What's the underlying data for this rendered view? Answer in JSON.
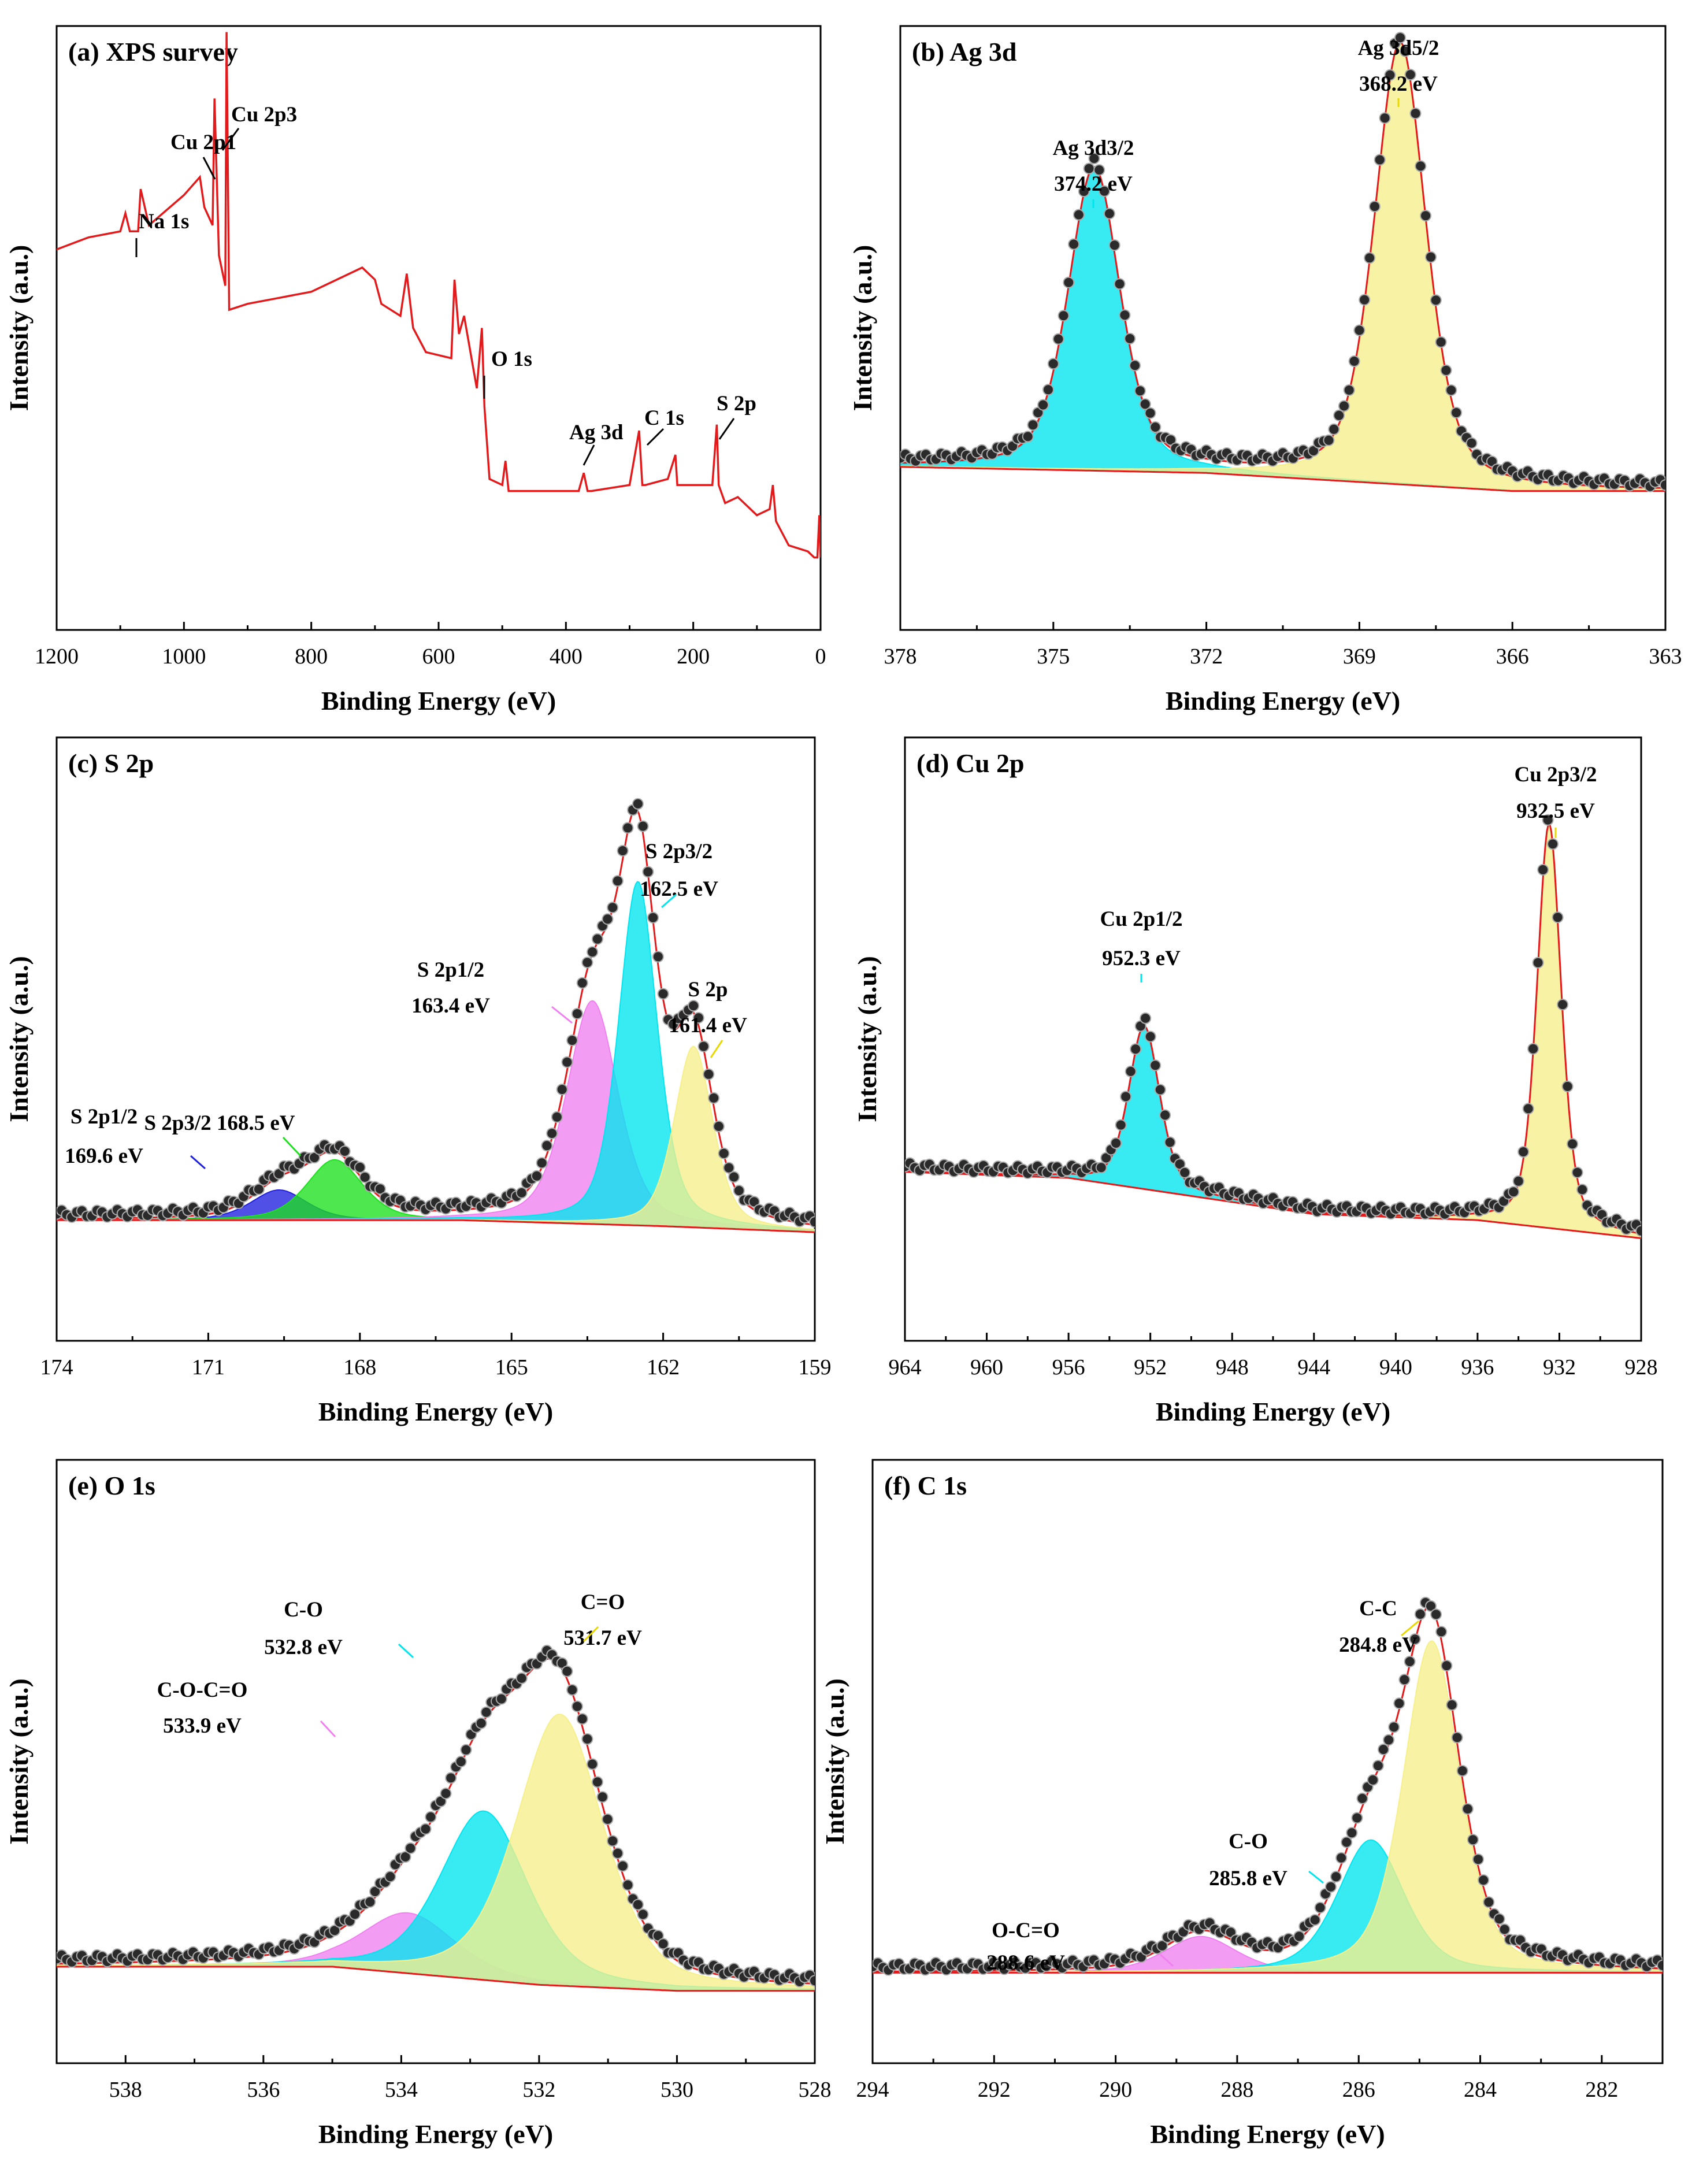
{
  "figure": {
    "panels": [
      {
        "id": "a",
        "title": "(a) XPS survey"
      },
      {
        "id": "b",
        "title": "(b) Ag 3d"
      },
      {
        "id": "c",
        "title": "(c) S 2p"
      },
      {
        "id": "d",
        "title": "(d) Cu 2p"
      },
      {
        "id": "e",
        "title": "(e) O 1s"
      },
      {
        "id": "f",
        "title": "(f) C 1s"
      }
    ]
  },
  "chart_data": [
    {
      "id": "a",
      "type": "line",
      "title": "(a) XPS survey",
      "xlabel": "Binding Energy (eV)",
      "ylabel": "Intensity (a.u.)",
      "xlim": [
        1200,
        0
      ],
      "ylim": [
        0,
        1
      ],
      "xticks": [
        1200,
        1000,
        800,
        600,
        400,
        200,
        0
      ],
      "series": [
        {
          "name": "survey",
          "color": "#e31a1c",
          "x": [
            1200,
            1150,
            1100,
            1092,
            1085,
            1072,
            1068,
            1055,
            1000,
            975,
            968,
            955,
            952,
            945,
            935,
            933,
            929,
            900,
            850,
            800,
            720,
            700,
            690,
            660,
            650,
            640,
            620,
            580,
            575,
            568,
            560,
            540,
            532,
            528,
            520,
            500,
            495,
            490,
            420,
            380,
            372,
            366,
            360,
            300,
            285,
            280,
            275,
            240,
            228,
            225,
            215,
            170,
            163,
            160,
            150,
            130,
            100,
            80,
            75,
            70,
            50,
            20,
            10,
            5,
            2,
            0
          ],
          "y": [
            0.63,
            0.65,
            0.66,
            0.69,
            0.66,
            0.66,
            0.73,
            0.67,
            0.72,
            0.75,
            0.7,
            0.67,
            0.88,
            0.62,
            0.57,
            0.99,
            0.53,
            0.54,
            0.55,
            0.56,
            0.6,
            0.58,
            0.54,
            0.52,
            0.59,
            0.5,
            0.46,
            0.45,
            0.58,
            0.49,
            0.52,
            0.4,
            0.5,
            0.37,
            0.25,
            0.24,
            0.28,
            0.23,
            0.23,
            0.23,
            0.26,
            0.23,
            0.23,
            0.24,
            0.33,
            0.24,
            0.24,
            0.25,
            0.29,
            0.24,
            0.24,
            0.24,
            0.34,
            0.24,
            0.21,
            0.22,
            0.19,
            0.2,
            0.24,
            0.18,
            0.14,
            0.13,
            0.12,
            0.12,
            0.19,
            0.12
          ]
        }
      ],
      "annotations": [
        {
          "label": "Na 1s",
          "x": 1072
        },
        {
          "label": "Cu 2p1",
          "x": 952
        },
        {
          "label": "Cu 2p3",
          "x": 933
        },
        {
          "label": "O 1s",
          "x": 532
        },
        {
          "label": "Ag 3d",
          "x": 368
        },
        {
          "label": "C 1s",
          "x": 285
        },
        {
          "label": "S 2p",
          "x": 163
        }
      ]
    },
    {
      "id": "b",
      "type": "line",
      "title": "(b) Ag 3d",
      "xlabel": "Binding Energy (eV)",
      "ylabel": "Intensity (a.u.)",
      "xlim": [
        378,
        363
      ],
      "ylim": [
        0,
        1
      ],
      "xticks": [
        378,
        375,
        372,
        369,
        366,
        363
      ],
      "baseline": {
        "x": [
          378,
          372,
          366,
          363
        ],
        "y": [
          0.27,
          0.26,
          0.23,
          0.23
        ]
      },
      "peaks": [
        {
          "name": "Ag 3d3/2",
          "center": 374.2,
          "height": 0.5,
          "width": 0.6,
          "color": "#00e5ee"
        },
        {
          "name": "Ag 3d5/2",
          "center": 368.2,
          "height": 0.73,
          "width": 0.6,
          "color": "#f6f08a"
        }
      ],
      "annotations": [
        {
          "label": "Ag 3d3/2",
          "value": "374.2 eV",
          "x": 374.2
        },
        {
          "label": "Ag 3d5/2",
          "value": "368.2 eV",
          "x": 368.2
        }
      ]
    },
    {
      "id": "c",
      "type": "line",
      "title": "(c) S 2p",
      "xlabel": "Binding Energy (eV)",
      "ylabel": "Intensity (a.u.)",
      "xlim": [
        174,
        159
      ],
      "ylim": [
        0,
        1
      ],
      "xticks": [
        174,
        171,
        168,
        165,
        162,
        159
      ],
      "baseline": {
        "x": [
          174,
          166,
          162,
          159
        ],
        "y": [
          0.2,
          0.2,
          0.19,
          0.18
        ]
      },
      "peaks": [
        {
          "name": "S 2p1/2 (169.6)",
          "center": 169.6,
          "height": 0.05,
          "width": 0.65,
          "color": "#1f1fdf"
        },
        {
          "name": "S 2p3/2 (168.5)",
          "center": 168.5,
          "height": 0.1,
          "width": 0.65,
          "color": "#1ee01e"
        },
        {
          "name": "S 2p1/2 (163.4)",
          "center": 163.4,
          "height": 0.37,
          "width": 0.6,
          "color": "#f080f0"
        },
        {
          "name": "S 2p3/2 (162.5)",
          "center": 162.5,
          "height": 0.57,
          "width": 0.45,
          "color": "#00e5ee"
        },
        {
          "name": "S 2p (161.4)",
          "center": 161.4,
          "height": 0.3,
          "width": 0.45,
          "color": "#f6f08a"
        }
      ],
      "annotations": [
        {
          "label": "S 2p1/2",
          "value": "169.6 eV",
          "x": 169.6
        },
        {
          "label": "S 2p3/2 168.5 eV",
          "x": 168.5
        },
        {
          "label": "S 2p1/2",
          "value": "163.4 eV",
          "x": 163.4
        },
        {
          "label": "S 2p3/2",
          "value": "162.5 eV",
          "x": 162.5
        },
        {
          "label": "S 2p",
          "value": "161.4 eV",
          "x": 161.4
        }
      ]
    },
    {
      "id": "d",
      "type": "line",
      "title": "(d) Cu 2p",
      "xlabel": "Binding Energy (eV)",
      "ylabel": "Intensity (a.u.)",
      "xlim": [
        964,
        928
      ],
      "ylim": [
        0,
        1
      ],
      "xticks": [
        964,
        960,
        956,
        952,
        948,
        944,
        940,
        936,
        932,
        928
      ],
      "baseline": {
        "x": [
          964,
          956,
          944,
          936,
          928
        ],
        "y": [
          0.28,
          0.27,
          0.21,
          0.2,
          0.17
        ]
      },
      "peaks": [
        {
          "name": "Cu 2p1/2",
          "center": 952.3,
          "height": 0.27,
          "width": 0.9,
          "color": "#00e5ee"
        },
        {
          "name": "Cu 2p3/2",
          "center": 932.5,
          "height": 0.67,
          "width": 0.7,
          "color": "#f6f08a"
        }
      ],
      "annotations": [
        {
          "label": "Cu 2p1/2",
          "value": "952.3 eV",
          "x": 952.3
        },
        {
          "label": "Cu 2p3/2",
          "value": "932.5 eV",
          "x": 932.5
        }
      ]
    },
    {
      "id": "e",
      "type": "line",
      "title": "(e) O 1s",
      "xlabel": "Binding Energy (eV)",
      "ylabel": "Intensity (a.u.)",
      "xlim": [
        539,
        528
      ],
      "ylim": [
        0,
        1
      ],
      "xticks": [
        538,
        536,
        534,
        532,
        530,
        528
      ],
      "baseline": {
        "x": [
          539,
          535,
          532,
          530,
          528
        ],
        "y": [
          0.16,
          0.16,
          0.13,
          0.12,
          0.12
        ]
      },
      "peaks": [
        {
          "name": "C-O-C=O",
          "center": 533.9,
          "height": 0.1,
          "width": 0.8,
          "color": "#f080f0"
        },
        {
          "name": "C-O",
          "center": 532.8,
          "height": 0.28,
          "width": 0.75,
          "color": "#00e5ee"
        },
        {
          "name": "C=O",
          "center": 531.7,
          "height": 0.45,
          "width": 0.75,
          "color": "#f6f08a"
        }
      ],
      "annotations": [
        {
          "label": "C-O-C=O",
          "value": "533.9 eV",
          "x": 533.9
        },
        {
          "label": "C-O",
          "value": "532.8 eV",
          "x": 532.8
        },
        {
          "label": "C=O",
          "value": "531.7 eV",
          "x": 531.7
        }
      ]
    },
    {
      "id": "f",
      "type": "line",
      "title": "(f) C 1s",
      "xlabel": "Binding Energy (eV)",
      "ylabel": "Intensity (a.u.)",
      "xlim": [
        294,
        281
      ],
      "ylim": [
        0,
        1
      ],
      "xticks": [
        294,
        292,
        290,
        288,
        286,
        284,
        282
      ],
      "baseline": {
        "x": [
          294,
          281
        ],
        "y": [
          0.15,
          0.15
        ]
      },
      "peaks": [
        {
          "name": "O-C=O",
          "center": 288.6,
          "height": 0.06,
          "width": 0.7,
          "color": "#f080f0"
        },
        {
          "name": "C-O",
          "center": 285.8,
          "height": 0.22,
          "width": 0.65,
          "color": "#00e5ee"
        },
        {
          "name": "C-C",
          "center": 284.8,
          "height": 0.55,
          "width": 0.55,
          "color": "#f6f08a"
        }
      ],
      "annotations": [
        {
          "label": "O-C=O",
          "value": "288.6 eV",
          "x": 288.6
        },
        {
          "label": "C-O",
          "value": "285.8 eV",
          "x": 285.8
        },
        {
          "label": "C-C",
          "value": "284.8 eV",
          "x": 284.8
        }
      ]
    }
  ]
}
